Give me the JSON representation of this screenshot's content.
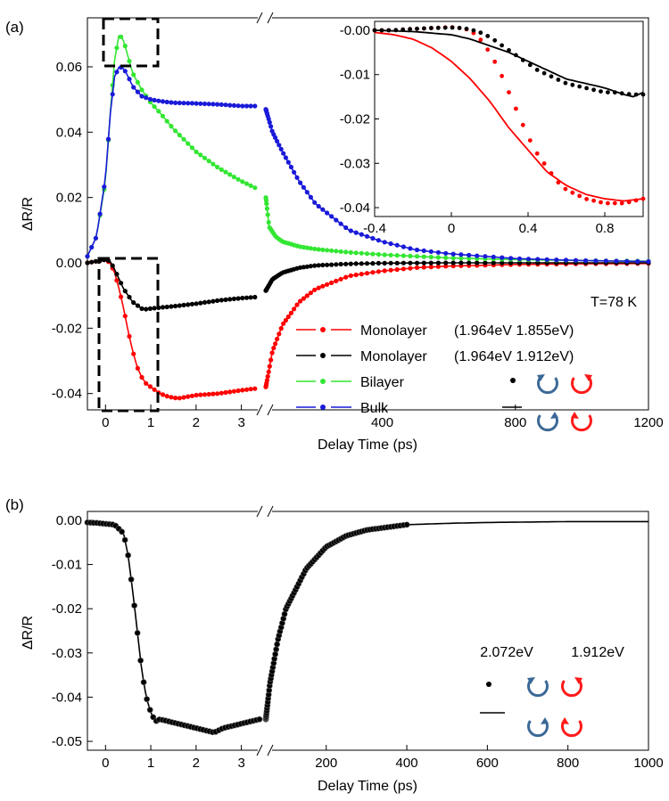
{
  "chart_data": [
    {
      "panel_label": "(a)",
      "type": "line",
      "ylabel": "ΔR/R",
      "xlabel": "Delay Time (ps)",
      "ylim": [
        -0.045,
        0.075
      ],
      "y_ticks": [
        "0.06",
        "0.04",
        "0.02",
        "0.00",
        "-0.02",
        "-0.04"
      ],
      "x_ticks_left": [
        "0",
        "1",
        "2",
        "3"
      ],
      "x_ticks_right": [
        "400",
        "800",
        "1200"
      ],
      "xlim_left": [
        -0.4,
        3.5
      ],
      "xlim_right": [
        50,
        1200
      ],
      "annotation": "T=78 K",
      "legend": [
        {
          "label": "Monolayer",
          "energies": "(1.964eV 1.855eV)",
          "color": "#ff0000"
        },
        {
          "label": "Monolayer",
          "energies": "(1.964eV 1.912eV)",
          "color": "#000000"
        },
        {
          "label": "Bilayer",
          "energies": "",
          "color": "#33e633"
        },
        {
          "label": "Bulk",
          "energies": "",
          "color": "#1a1ad9"
        }
      ],
      "series": [
        {
          "name": "Monolayer (1.964eV 1.855eV)",
          "color": "#ff0000",
          "left_x": [
            -0.4,
            -0.2,
            0,
            0.1,
            0.2,
            0.3,
            0.4,
            0.5,
            0.6,
            0.7,
            0.8,
            0.9,
            1.0,
            1.2,
            1.4,
            1.6,
            1.8,
            2.0,
            2.5,
            3.0,
            3.3
          ],
          "left_y": [
            0,
            0.0005,
            0.001,
            0,
            -0.003,
            -0.008,
            -0.014,
            -0.021,
            -0.027,
            -0.032,
            -0.035,
            -0.037,
            -0.038,
            -0.04,
            -0.041,
            -0.0415,
            -0.041,
            -0.0405,
            -0.04,
            -0.039,
            -0.0385
          ],
          "right_x": [
            50,
            70,
            100,
            150,
            200,
            250,
            300,
            400,
            500,
            600,
            800,
            1000,
            1200
          ],
          "right_y": [
            -0.038,
            -0.027,
            -0.019,
            -0.012,
            -0.008,
            -0.006,
            -0.004,
            -0.0025,
            -0.0015,
            -0.001,
            -0.0005,
            -0.0003,
            -0.0002
          ]
        },
        {
          "name": "Monolayer (1.964eV 1.912eV)",
          "color": "#000000",
          "left_x": [
            -0.4,
            -0.2,
            0,
            0.1,
            0.2,
            0.3,
            0.4,
            0.5,
            0.6,
            0.7,
            0.8,
            0.9,
            1.0,
            1.2,
            1.5,
            2.0,
            2.5,
            3.0,
            3.3
          ],
          "left_y": [
            0,
            0.0005,
            0.001,
            0.0005,
            -0.002,
            -0.005,
            -0.008,
            -0.01,
            -0.012,
            -0.013,
            -0.014,
            -0.0142,
            -0.014,
            -0.0137,
            -0.0133,
            -0.0125,
            -0.0115,
            -0.0108,
            -0.0105
          ],
          "right_x": [
            50,
            70,
            100,
            150,
            200,
            300,
            400,
            600,
            800,
            1000,
            1200
          ],
          "right_y": [
            -0.0085,
            -0.005,
            -0.003,
            -0.0015,
            -0.0008,
            -0.0003,
            -0.0001,
            0,
            0,
            0,
            0
          ]
        },
        {
          "name": "Bilayer",
          "color": "#33e633",
          "left_x": [
            -0.4,
            -0.2,
            0,
            0.1,
            0.2,
            0.3,
            0.4,
            0.5,
            0.6,
            0.8,
            1.0,
            1.2,
            1.5,
            2.0,
            2.5,
            3.0,
            3.3
          ],
          "left_y": [
            0.002,
            0.008,
            0.025,
            0.045,
            0.062,
            0.07,
            0.068,
            0.063,
            0.058,
            0.053,
            0.049,
            0.046,
            0.041,
            0.034,
            0.029,
            0.025,
            0.023
          ],
          "right_x": [
            50,
            60,
            80,
            100,
            150,
            200,
            300,
            400,
            600,
            800,
            1000,
            1200
          ],
          "right_y": [
            0.02,
            0.011,
            0.008,
            0.0065,
            0.005,
            0.0042,
            0.0032,
            0.0025,
            0.0015,
            0.001,
            0.0007,
            0.0005
          ]
        },
        {
          "name": "Bulk",
          "color": "#1a1ad9",
          "left_x": [
            -0.4,
            -0.2,
            0,
            0.1,
            0.2,
            0.3,
            0.4,
            0.5,
            0.6,
            0.8,
            1.0,
            1.2,
            1.5,
            2.0,
            2.5,
            3.0,
            3.3
          ],
          "left_y": [
            0.002,
            0.008,
            0.026,
            0.045,
            0.057,
            0.06,
            0.0595,
            0.057,
            0.054,
            0.051,
            0.05,
            0.0495,
            0.049,
            0.0488,
            0.0485,
            0.048,
            0.048
          ],
          "right_x": [
            50,
            70,
            100,
            150,
            200,
            250,
            300,
            400,
            500,
            600,
            800,
            1000,
            1200
          ],
          "right_y": [
            0.047,
            0.04,
            0.034,
            0.025,
            0.018,
            0.014,
            0.01,
            0.0065,
            0.004,
            0.0028,
            0.0013,
            0.0007,
            0.0004
          ]
        }
      ],
      "inset": {
        "xlim": [
          -0.4,
          1.0
        ],
        "ylim": [
          -0.042,
          0.002
        ],
        "x_ticks": [
          "-0.4",
          "0",
          "0.4",
          "0.8"
        ],
        "y_ticks": [
          "-0.00",
          "-0.01",
          "-0.02",
          "-0.03",
          "-0.04"
        ],
        "series": [
          {
            "name": "Monolayer (1.964eV 1.855eV) points",
            "color": "#ff0000",
            "style": "points",
            "x": [
              -0.4,
              -0.3,
              -0.2,
              -0.1,
              0,
              0.05,
              0.1,
              0.15,
              0.2,
              0.25,
              0.3,
              0.35,
              0.4,
              0.45,
              0.5,
              0.55,
              0.6,
              0.65,
              0.7,
              0.75,
              0.8,
              0.85,
              0.9,
              0.95,
              1.0
            ],
            "y": [
              0,
              0,
              0.0003,
              0.0005,
              0.0007,
              0.0005,
              0,
              -0.002,
              -0.005,
              -0.009,
              -0.014,
              -0.019,
              -0.024,
              -0.028,
              -0.031,
              -0.034,
              -0.036,
              -0.037,
              -0.038,
              -0.0385,
              -0.039,
              -0.039,
              -0.039,
              -0.0385,
              -0.038
            ]
          },
          {
            "name": "Monolayer (1.964eV 1.855eV) line",
            "color": "#ff0000",
            "style": "line",
            "x": [
              -0.4,
              -0.3,
              -0.2,
              -0.1,
              0,
              0.1,
              0.2,
              0.3,
              0.4,
              0.5,
              0.6,
              0.7,
              0.8,
              0.9,
              1.0
            ],
            "y": [
              -0.0005,
              -0.001,
              -0.002,
              -0.004,
              -0.007,
              -0.011,
              -0.016,
              -0.022,
              -0.027,
              -0.032,
              -0.035,
              -0.037,
              -0.038,
              -0.0385,
              -0.038
            ]
          },
          {
            "name": "Monolayer (1.964eV 1.912eV) points",
            "color": "#000000",
            "style": "points",
            "x": [
              -0.4,
              -0.3,
              -0.2,
              -0.1,
              0,
              0.05,
              0.1,
              0.15,
              0.2,
              0.25,
              0.3,
              0.35,
              0.4,
              0.45,
              0.5,
              0.55,
              0.6,
              0.65,
              0.7,
              0.75,
              0.8,
              0.85,
              0.9,
              0.95,
              1.0
            ],
            "y": [
              0,
              0,
              0.0003,
              0.0005,
              0.0006,
              0.0005,
              0.0002,
              -0.0005,
              -0.0015,
              -0.003,
              -0.0045,
              -0.006,
              -0.0075,
              -0.009,
              -0.01,
              -0.011,
              -0.012,
              -0.0125,
              -0.013,
              -0.0135,
              -0.014,
              -0.014,
              -0.0143,
              -0.0145,
              -0.0145
            ]
          },
          {
            "name": "Monolayer (1.964eV 1.912eV) line",
            "color": "#000000",
            "style": "line",
            "x": [
              -0.4,
              -0.2,
              0,
              0.1,
              0.2,
              0.3,
              0.4,
              0.5,
              0.6,
              0.7,
              0.8,
              0.9,
              0.95,
              1.0
            ],
            "y": [
              0,
              -0.0003,
              -0.001,
              -0.002,
              -0.0035,
              -0.005,
              -0.007,
              -0.009,
              -0.011,
              -0.012,
              -0.013,
              -0.0145,
              -0.015,
              -0.014
            ]
          }
        ]
      }
    },
    {
      "panel_label": "(b)",
      "type": "line",
      "ylabel": "ΔR/R",
      "xlabel": "Delay Time (ps)",
      "ylim": [
        -0.052,
        0.002
      ],
      "y_ticks": [
        "0.00",
        "-0.01",
        "-0.02",
        "-0.03",
        "-0.04",
        "-0.05"
      ],
      "x_ticks_left": [
        "0",
        "1",
        "2",
        "3"
      ],
      "x_ticks_right": [
        "200",
        "400",
        "600",
        "800",
        "1000"
      ],
      "xlim_left": [
        -0.4,
        3.5
      ],
      "xlim_right": [
        50,
        1000
      ],
      "legend_energies": [
        "2.072eV",
        "1.912eV"
      ],
      "series": [
        {
          "name": "data",
          "color": "#000000",
          "left_x": [
            -0.4,
            -0.2,
            0,
            0.2,
            0.4,
            0.5,
            0.6,
            0.7,
            0.8,
            0.9,
            1.0,
            1.1,
            1.2,
            1.4,
            1.6,
            1.8,
            2.0,
            2.2,
            2.4,
            2.6,
            2.8,
            3.0,
            3.2,
            3.4
          ],
          "left_y": [
            -0.0005,
            -0.0006,
            -0.0008,
            -0.001,
            -0.003,
            -0.008,
            -0.016,
            -0.025,
            -0.034,
            -0.04,
            -0.0435,
            -0.0455,
            -0.045,
            -0.0455,
            -0.046,
            -0.0465,
            -0.047,
            -0.0475,
            -0.048,
            -0.047,
            -0.0465,
            -0.046,
            -0.0455,
            -0.045
          ],
          "right_x": [
            50,
            60,
            80,
            100,
            150,
            200,
            250,
            300,
            400,
            500,
            600,
            700,
            800,
            900,
            1000
          ],
          "right_y": [
            -0.045,
            -0.037,
            -0.027,
            -0.02,
            -0.011,
            -0.006,
            -0.0035,
            -0.0022,
            -0.001,
            -0.0007,
            -0.0005,
            -0.0004,
            -0.0003,
            -0.0003,
            -0.0003
          ]
        }
      ]
    }
  ]
}
